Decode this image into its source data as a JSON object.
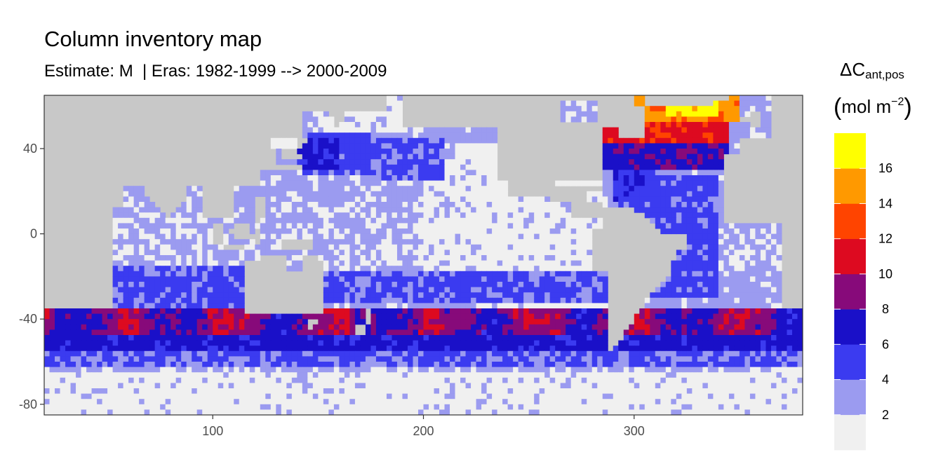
{
  "chart_data": {
    "type": "heatmap",
    "title": "Column inventory map",
    "subtitle": "Estimate: M  | Eras: 1982-1999 --> 2000-2009",
    "xlim": [
      20,
      380
    ],
    "ylim": [
      -85,
      65
    ],
    "x_ticks": [
      100,
      200,
      300
    ],
    "y_ticks": [
      40,
      0,
      -40,
      -80
    ],
    "grid": false,
    "legend": {
      "title_symbol": "ΔC",
      "title_sub": "ant,pos",
      "unit_base": "mol m",
      "unit_exp": "−2",
      "placement": "right",
      "breaks": [
        2,
        4,
        6,
        8,
        10,
        12,
        14,
        16
      ],
      "bins": [
        {
          "range": [
            0,
            2
          ],
          "color": "#f0f0f0"
        },
        {
          "range": [
            2,
            4
          ],
          "color": "#9b9bf0"
        },
        {
          "range": [
            4,
            6
          ],
          "color": "#3b3bf0"
        },
        {
          "range": [
            6,
            8
          ],
          "color": "#1a10c8"
        },
        {
          "range": [
            8,
            10
          ],
          "color": "#870a7a"
        },
        {
          "range": [
            10,
            12
          ],
          "color": "#dd0a20"
        },
        {
          "range": [
            12,
            14
          ],
          "color": "#ff4400"
        },
        {
          "range": [
            14,
            16
          ],
          "color": "#ff9900"
        },
        {
          "range": [
            16,
            18
          ],
          "color": "#ffff00"
        }
      ]
    },
    "colors": {
      "land": "#c8c8c8",
      "panel_border": "#333333"
    }
  }
}
